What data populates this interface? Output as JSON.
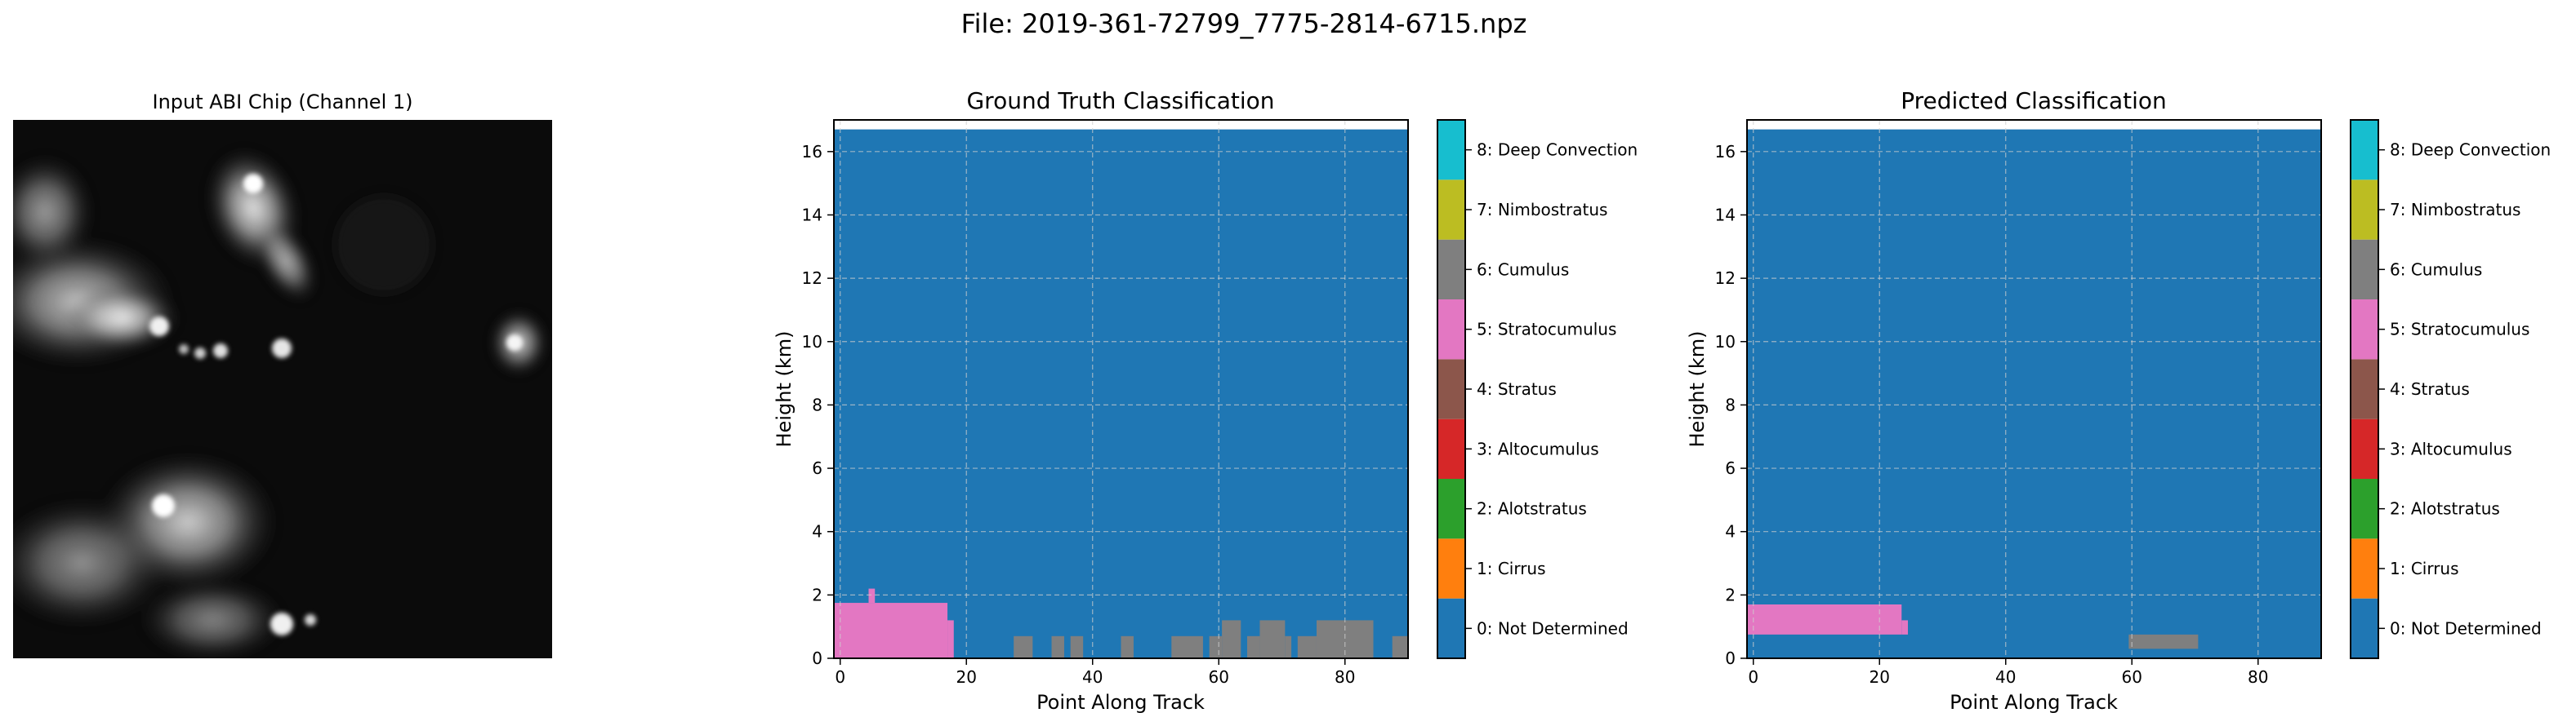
{
  "figure": {
    "suptitle": "File: 2019-361-72799_7775-2814-6715.npz"
  },
  "image_panel": {
    "title": "Input ABI Chip (Channel 1)"
  },
  "legend_classes": [
    {
      "code": 0,
      "label": "0: Not Determined",
      "color": "#1f77b4"
    },
    {
      "code": 1,
      "label": "1: Cirrus",
      "color": "#ff7f0e"
    },
    {
      "code": 2,
      "label": "2: Alotstratus",
      "color": "#2ca02c"
    },
    {
      "code": 3,
      "label": "3: Altocumulus",
      "color": "#d62728"
    },
    {
      "code": 4,
      "label": "4: Stratus",
      "color": "#8c564b"
    },
    {
      "code": 5,
      "label": "5: Stratocumulus",
      "color": "#e377c2"
    },
    {
      "code": 6,
      "label": "6: Cumulus",
      "color": "#7f7f7f"
    },
    {
      "code": 7,
      "label": "7: Nimbostratus",
      "color": "#bcbd22"
    },
    {
      "code": 8,
      "label": "8: Deep Convection",
      "color": "#17becf"
    }
  ],
  "chart_data": [
    {
      "type": "heatmap",
      "title": "Ground Truth Classification",
      "xlabel": "Point Along Track",
      "ylabel": "Height (km)",
      "xlim": [
        -1,
        90
      ],
      "ylim": [
        0,
        17
      ],
      "xticks": [
        0,
        20,
        40,
        60,
        80
      ],
      "yticks": [
        0,
        2,
        4,
        6,
        8,
        10,
        12,
        14,
        16
      ],
      "grid": true,
      "background_class": 0,
      "data_top": 16.7,
      "cells": [
        {
          "class": 5,
          "x0": -1,
          "x1": 17,
          "y0": 0,
          "y1": 1.75
        },
        {
          "class": 5,
          "x0": 17,
          "x1": 18,
          "y0": 0,
          "y1": 1.2
        },
        {
          "class": 5,
          "x0": 4.5,
          "x1": 5.5,
          "y0": 1.75,
          "y1": 2.2
        },
        {
          "class": 6,
          "x0": 27.5,
          "x1": 30.5,
          "y0": 0,
          "y1": 0.7
        },
        {
          "class": 6,
          "x0": 33.5,
          "x1": 35.5,
          "y0": 0,
          "y1": 0.7
        },
        {
          "class": 6,
          "x0": 36.5,
          "x1": 38.5,
          "y0": 0,
          "y1": 0.7
        },
        {
          "class": 6,
          "x0": 44.5,
          "x1": 46.5,
          "y0": 0,
          "y1": 0.7
        },
        {
          "class": 6,
          "x0": 52.5,
          "x1": 57.5,
          "y0": 0,
          "y1": 0.7
        },
        {
          "class": 6,
          "x0": 58.5,
          "x1": 60.5,
          "y0": 0,
          "y1": 0.7
        },
        {
          "class": 6,
          "x0": 60.5,
          "x1": 63.5,
          "y0": 0,
          "y1": 1.2
        },
        {
          "class": 6,
          "x0": 64.5,
          "x1": 66.5,
          "y0": 0,
          "y1": 0.7
        },
        {
          "class": 6,
          "x0": 66.5,
          "x1": 70.5,
          "y0": 0,
          "y1": 1.2
        },
        {
          "class": 6,
          "x0": 70.5,
          "x1": 71.5,
          "y0": 0,
          "y1": 0.7
        },
        {
          "class": 6,
          "x0": 72.5,
          "x1": 75.5,
          "y0": 0,
          "y1": 0.7
        },
        {
          "class": 6,
          "x0": 75.5,
          "x1": 84.5,
          "y0": 0,
          "y1": 1.2
        },
        {
          "class": 6,
          "x0": 87.5,
          "x1": 90,
          "y0": 0,
          "y1": 0.7
        }
      ]
    },
    {
      "type": "heatmap",
      "title": "Predicted Classification",
      "xlabel": "Point Along Track",
      "ylabel": "Height (km)",
      "xlim": [
        -1,
        90
      ],
      "ylim": [
        0,
        17
      ],
      "xticks": [
        0,
        20,
        40,
        60,
        80
      ],
      "yticks": [
        0,
        2,
        4,
        6,
        8,
        10,
        12,
        14,
        16
      ],
      "grid": true,
      "background_class": 0,
      "data_top": 16.7,
      "cells": [
        {
          "class": 5,
          "x0": -1,
          "x1": 23.5,
          "y0": 0.75,
          "y1": 1.7
        },
        {
          "class": 5,
          "x0": 23.5,
          "x1": 24.5,
          "y0": 0.75,
          "y1": 1.2
        },
        {
          "class": 6,
          "x0": 59.5,
          "x1": 70.5,
          "y0": 0.3,
          "y1": 0.75
        }
      ]
    }
  ]
}
